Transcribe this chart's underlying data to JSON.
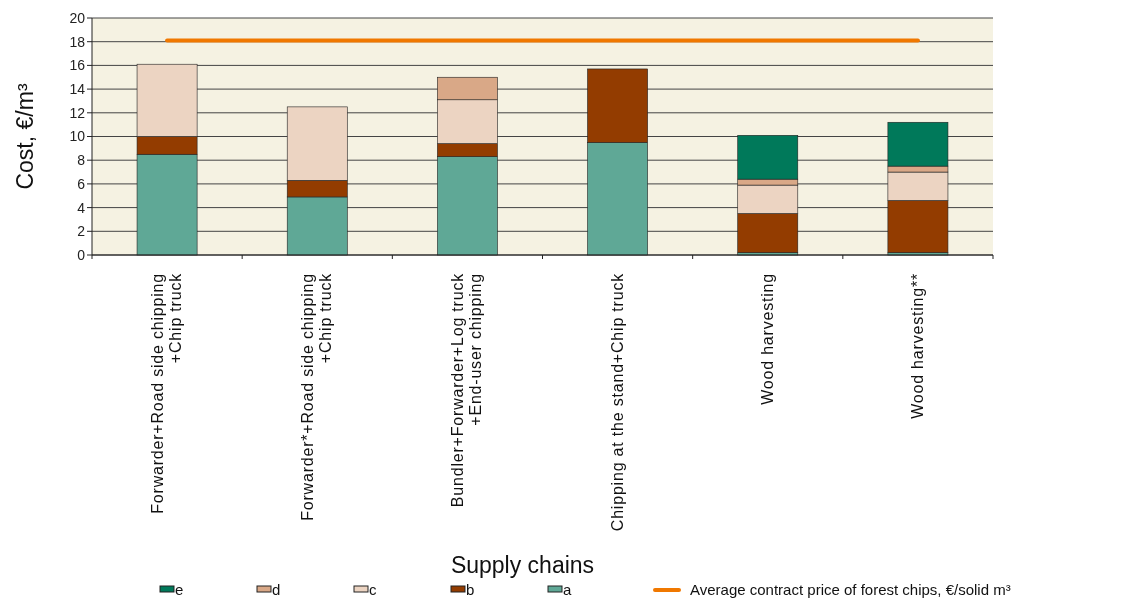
{
  "chart_data": {
    "type": "bar",
    "stacked": true,
    "xlabel": "Supply chains",
    "ylabel": "Cost, €/m³",
    "categories": [
      "Forwarder+Road side chipping\n+Chip truck",
      "Forwarder*+Road side chipping\n+Chip truck",
      "Bundler+Forwarder+Log truck\n+End-user chipping",
      "Chipping at the stand+Chip truck",
      "Wood harvesting",
      "Wood harvesting**"
    ],
    "series": [
      {
        "name": "a",
        "color": "#5fa896",
        "values": [
          8.5,
          4.9,
          8.3,
          9.5,
          0.2,
          0.2
        ]
      },
      {
        "name": "b",
        "color": "#933c00",
        "values": [
          1.5,
          1.4,
          1.1,
          6.2,
          3.3,
          4.4
        ]
      },
      {
        "name": "c",
        "color": "#ecd4c2",
        "values": [
          6.1,
          6.2,
          3.7,
          null,
          2.4,
          2.4
        ]
      },
      {
        "name": "d",
        "color": "#d9a887",
        "values": [
          null,
          null,
          1.9,
          null,
          0.5,
          0.5
        ]
      },
      {
        "name": "e",
        "color": "#00795a",
        "values": [
          null,
          null,
          null,
          null,
          3.7,
          3.7
        ]
      },
      {
        "name": "Average contract price of forest chips, €/solid m³",
        "type": "line",
        "color": "#f07800",
        "values": [
          18.1,
          18.1,
          18.1,
          18.1,
          18.1,
          18.1
        ]
      }
    ],
    "ylim": [
      0,
      20
    ],
    "yticks": [
      0,
      2,
      4,
      6,
      8,
      10,
      12,
      14,
      16,
      18,
      20
    ],
    "grid": "y",
    "legend": "bottom"
  }
}
